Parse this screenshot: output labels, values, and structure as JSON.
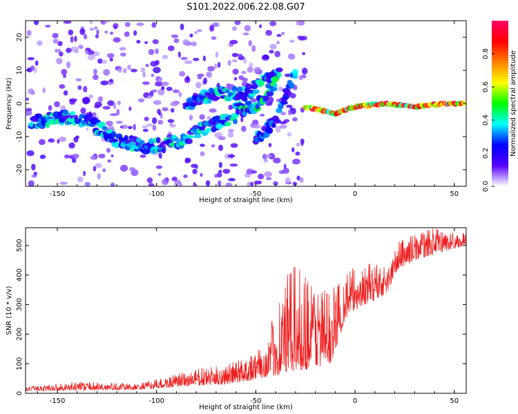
{
  "title": "S101.2022.006.22.08.G07",
  "chart_data": [
    {
      "type": "heatmap",
      "xlabel": "Height of straight line (km)",
      "ylabel": "Frequency (Hz)",
      "xlim": [
        -166,
        56
      ],
      "ylim": [
        -25,
        25
      ],
      "xticks": [
        -150,
        -100,
        -50,
        0,
        50
      ],
      "yticks": [
        -20,
        -10,
        0,
        10,
        20
      ],
      "colorbar": {
        "label": "Normalized spectral amplitude",
        "range": [
          0,
          1
        ],
        "ticks": [
          "0.0",
          "0.2",
          "0.4",
          "0.6",
          "0.8"
        ],
        "tick_values": [
          0.0,
          0.2,
          0.4,
          0.6,
          0.8
        ],
        "colormap": [
          "#ffffff",
          "#5500ff",
          "#0000ff",
          "#00ffff",
          "#00ff00",
          "#ffff00",
          "#ff8000",
          "#ff0000",
          "#ff0066"
        ]
      },
      "features": [
        {
          "name": "noise region",
          "x_range": [
            -166,
            -25
          ],
          "freq_spread": [
            -25,
            25
          ],
          "amplitude": 0.1
        },
        {
          "name": "lower branch",
          "points": [
            [
              -163,
              -6
            ],
            [
              -150,
              -4
            ],
            [
              -135,
              -5
            ],
            [
              -120,
              -11
            ],
            [
              -105,
              -13
            ],
            [
              -90,
              -12
            ],
            [
              -75,
              -7
            ],
            [
              -60,
              -4
            ]
          ],
          "amplitude": 0.3
        },
        {
          "name": "upper branch",
          "points": [
            [
              -85,
              0
            ],
            [
              -70,
              3
            ],
            [
              -55,
              3
            ],
            [
              -45,
              7
            ],
            [
              -38,
              10
            ]
          ],
          "amplitude": 0.3
        },
        {
          "name": "central branch",
          "points": [
            [
              -60,
              -2
            ],
            [
              -50,
              -1
            ],
            [
              -45,
              3
            ],
            [
              -40,
              6
            ]
          ],
          "amplitude": 0.35
        },
        {
          "name": "descending branch",
          "points": [
            [
              -50,
              -11
            ],
            [
              -40,
              -5
            ],
            [
              -35,
              2
            ],
            [
              -30,
              9
            ]
          ],
          "amplitude": 0.25
        },
        {
          "name": "carrier",
          "points": [
            [
              -25,
              -1
            ],
            [
              -10,
              -3
            ],
            [
              0,
              -1
            ],
            [
              15,
              0
            ],
            [
              30,
              -1
            ],
            [
              45,
              0
            ],
            [
              55,
              0
            ]
          ],
          "amplitude": 0.9
        }
      ]
    },
    {
      "type": "line",
      "xlabel": "Height of straight line (km)",
      "ylabel": "SNR (10 * v/v)",
      "xlim": [
        -166,
        56
      ],
      "ylim": [
        0,
        560
      ],
      "xticks": [
        -150,
        -100,
        -50,
        0,
        50
      ],
      "yticks": [
        0,
        100,
        200,
        300,
        400,
        500
      ],
      "color": "#ee1c1c",
      "envelope": {
        "x": [
          -166,
          -140,
          -110,
          -95,
          -80,
          -65,
          -55,
          -45,
          -38,
          -32,
          -25,
          -18,
          -12,
          -5,
          0,
          5,
          12,
          16,
          22,
          30,
          40,
          50,
          56
        ],
        "low": [
          8,
          10,
          12,
          18,
          25,
          30,
          40,
          55,
          60,
          70,
          80,
          90,
          100,
          250,
          280,
          300,
          320,
          340,
          420,
          450,
          470,
          490,
          500
        ],
        "high": [
          22,
          40,
          32,
          55,
          85,
          95,
          130,
          160,
          350,
          430,
          420,
          380,
          350,
          420,
          430,
          430,
          460,
          420,
          520,
          540,
          560,
          545,
          540
        ]
      }
    }
  ]
}
